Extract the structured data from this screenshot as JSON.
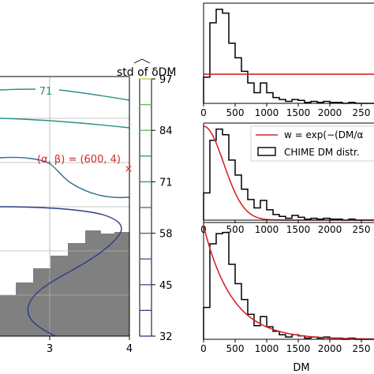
{
  "chart_data": [
    {
      "type": "contour",
      "xlim": [
        2,
        4
      ],
      "xticks": [
        "3",
        "4"
      ],
      "contour_labels": [
        "71"
      ],
      "annotation": {
        "text": "(α, β) = (600, 4)",
        "color": "#d62728",
        "marker": "×"
      },
      "masked_region_color": "#808080",
      "grid": true,
      "levels": [
        32,
        45,
        58,
        71,
        84,
        97
      ],
      "level_colors": [
        "#2f3c82",
        "#3a548c",
        "#2f6f8f",
        "#2c8f88",
        "#61b25c",
        "#b5d33c"
      ]
    },
    {
      "type": "colorbar",
      "title": "std of δDM",
      "ticks": [
        "97",
        "84",
        "71",
        "58",
        "45",
        "32"
      ]
    },
    {
      "type": "histogram",
      "panel": "top",
      "xlim": [
        0,
        2700
      ],
      "xticks": [
        "0",
        "500",
        "1000",
        "1500",
        "2000",
        "250"
      ],
      "bin_width": 100,
      "values": [
        0.27,
        0.83,
        0.97,
        0.93,
        0.62,
        0.47,
        0.33,
        0.21,
        0.11,
        0.21,
        0.11,
        0.06,
        0.04,
        0.02,
        0.04,
        0.03,
        0.01,
        0.02,
        0.01,
        0.02,
        0.01,
        0.01,
        0.0,
        0.01,
        0.0,
        0.0,
        0.0
      ],
      "weight_curve": "flat",
      "weight_level": 0.3
    },
    {
      "type": "histogram",
      "panel": "middle",
      "xlim": [
        0,
        2700
      ],
      "xticks": [
        "0",
        "500",
        "1000",
        "1500",
        "2000",
        "250"
      ],
      "bin_width": 100,
      "values": [
        0.29,
        0.85,
        0.97,
        0.91,
        0.64,
        0.48,
        0.33,
        0.22,
        0.13,
        0.21,
        0.11,
        0.06,
        0.04,
        0.02,
        0.05,
        0.03,
        0.01,
        0.02,
        0.01,
        0.02,
        0.01,
        0.01,
        0.0,
        0.01,
        0.0,
        0.0,
        0.0
      ],
      "weight_curve": "gaussian",
      "weight_scale": 450,
      "legend": [
        {
          "label": "w = exp(−(DM/α",
          "color": "#d62728",
          "kind": "line"
        },
        {
          "label": "CHIME DM distr.",
          "color": "#000000",
          "kind": "box"
        }
      ]
    },
    {
      "type": "histogram",
      "panel": "bottom",
      "xlim": [
        0,
        2700
      ],
      "xticks": [
        "0",
        "500",
        "1000",
        "1500",
        "2000",
        "250"
      ],
      "xlabel": "DM",
      "bin_width": 100,
      "values": [
        0.28,
        0.84,
        0.93,
        0.94,
        0.66,
        0.49,
        0.35,
        0.22,
        0.12,
        0.2,
        0.11,
        0.07,
        0.04,
        0.02,
        0.04,
        0.03,
        0.01,
        0.02,
        0.01,
        0.02,
        0.01,
        0.01,
        0.0,
        0.01,
        0.0,
        0.0,
        0.0
      ],
      "weight_curve": "exponential",
      "weight_scale": 450
    }
  ]
}
